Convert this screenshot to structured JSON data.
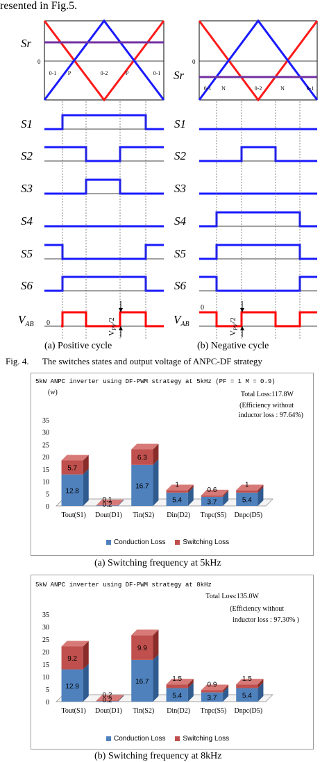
{
  "header_text": "resented in Fig.5.",
  "waveforms": {
    "left_labels": [
      "Sr",
      "S1",
      "S2",
      "S3",
      "S4",
      "S5",
      "S6"
    ],
    "vab_label": "V",
    "vab_sub": "AB",
    "zero": "0",
    "left_regions": [
      "0-1",
      "P",
      "0-2",
      "P",
      "0-1"
    ],
    "right_regions": [
      "0-1",
      "N",
      "0-2",
      "N",
      "0-1"
    ],
    "vpv_label": "V",
    "vpv_sub": "PV",
    "vpv_tail": "/2",
    "cap_a": "(a) Positive cycle",
    "cap_b": "(b) Negative cycle"
  },
  "fig4_caption": {
    "num": "Fig. 4.",
    "text": "The switches states and output voltage of ANPC-DF strategy"
  },
  "colors": {
    "conduction": "#4f81bd",
    "switching": "#c0504d",
    "signal": "#1a1aff",
    "carrier_red": "#ff1a1a",
    "reference": "#7030a0",
    "vab": "#ff0000"
  },
  "legend": {
    "conduction": "Conduction Loss",
    "switching": "Switching Loss"
  },
  "chart_data": [
    {
      "type": "bar",
      "stacked": true,
      "title": "5kW ANPC inverter using DF-PWM strategy at 5kHz (PF = 1  M = 0.9)",
      "ylabel": "(w)",
      "ylim": [
        0,
        35
      ],
      "yticks": [
        "35",
        "30",
        "25",
        "20",
        "15",
        "10",
        "5",
        "0"
      ],
      "categories": [
        "Tout(S1)",
        "Dout(D1)",
        "Tin(S2)",
        "Din(D2)",
        "Tnpc(S5)",
        "Dnpc(D5)"
      ],
      "series": [
        {
          "name": "Conduction Loss",
          "values": [
            12.8,
            0.2,
            16.7,
            5.4,
            3.7,
            5.4
          ]
        },
        {
          "name": "Switching Loss",
          "values": [
            5.7,
            0.1,
            6.3,
            1,
            0.6,
            1
          ]
        }
      ],
      "annotation_total": "Total Loss:117.8W",
      "annotation_eff_1": "(Efficiency without",
      "annotation_eff_2": "inductor loss : 97.64%)",
      "caption": "(a) Switching frequency at 5kHz"
    },
    {
      "type": "bar",
      "stacked": true,
      "title": "5kW ANPC inverter using DF-PWM strategy at 8kHz",
      "ylabel": "(w)",
      "ylim": [
        0,
        35
      ],
      "yticks": [
        "35",
        "30",
        "25",
        "20",
        "15",
        "10",
        "5",
        "0"
      ],
      "categories": [
        "Tout(S1)",
        "Dout(D1)",
        "Tin(S2)",
        "Din(D2)",
        "Tnpc(S5)",
        "Dnpc(D5)"
      ],
      "series": [
        {
          "name": "Conduction Loss",
          "values": [
            12.9,
            0.2,
            16.7,
            5.4,
            3.7,
            5.4
          ]
        },
        {
          "name": "Switching Loss",
          "values": [
            9.2,
            0.2,
            9.9,
            1.5,
            0.9,
            1.5
          ]
        }
      ],
      "annotation_total": "Total Loss:135.0W",
      "annotation_eff_1": "(Efficiency without",
      "annotation_eff_2": "inductor loss : 97.30% )",
      "caption": "(b) Switching frequency at 8kHz"
    }
  ]
}
